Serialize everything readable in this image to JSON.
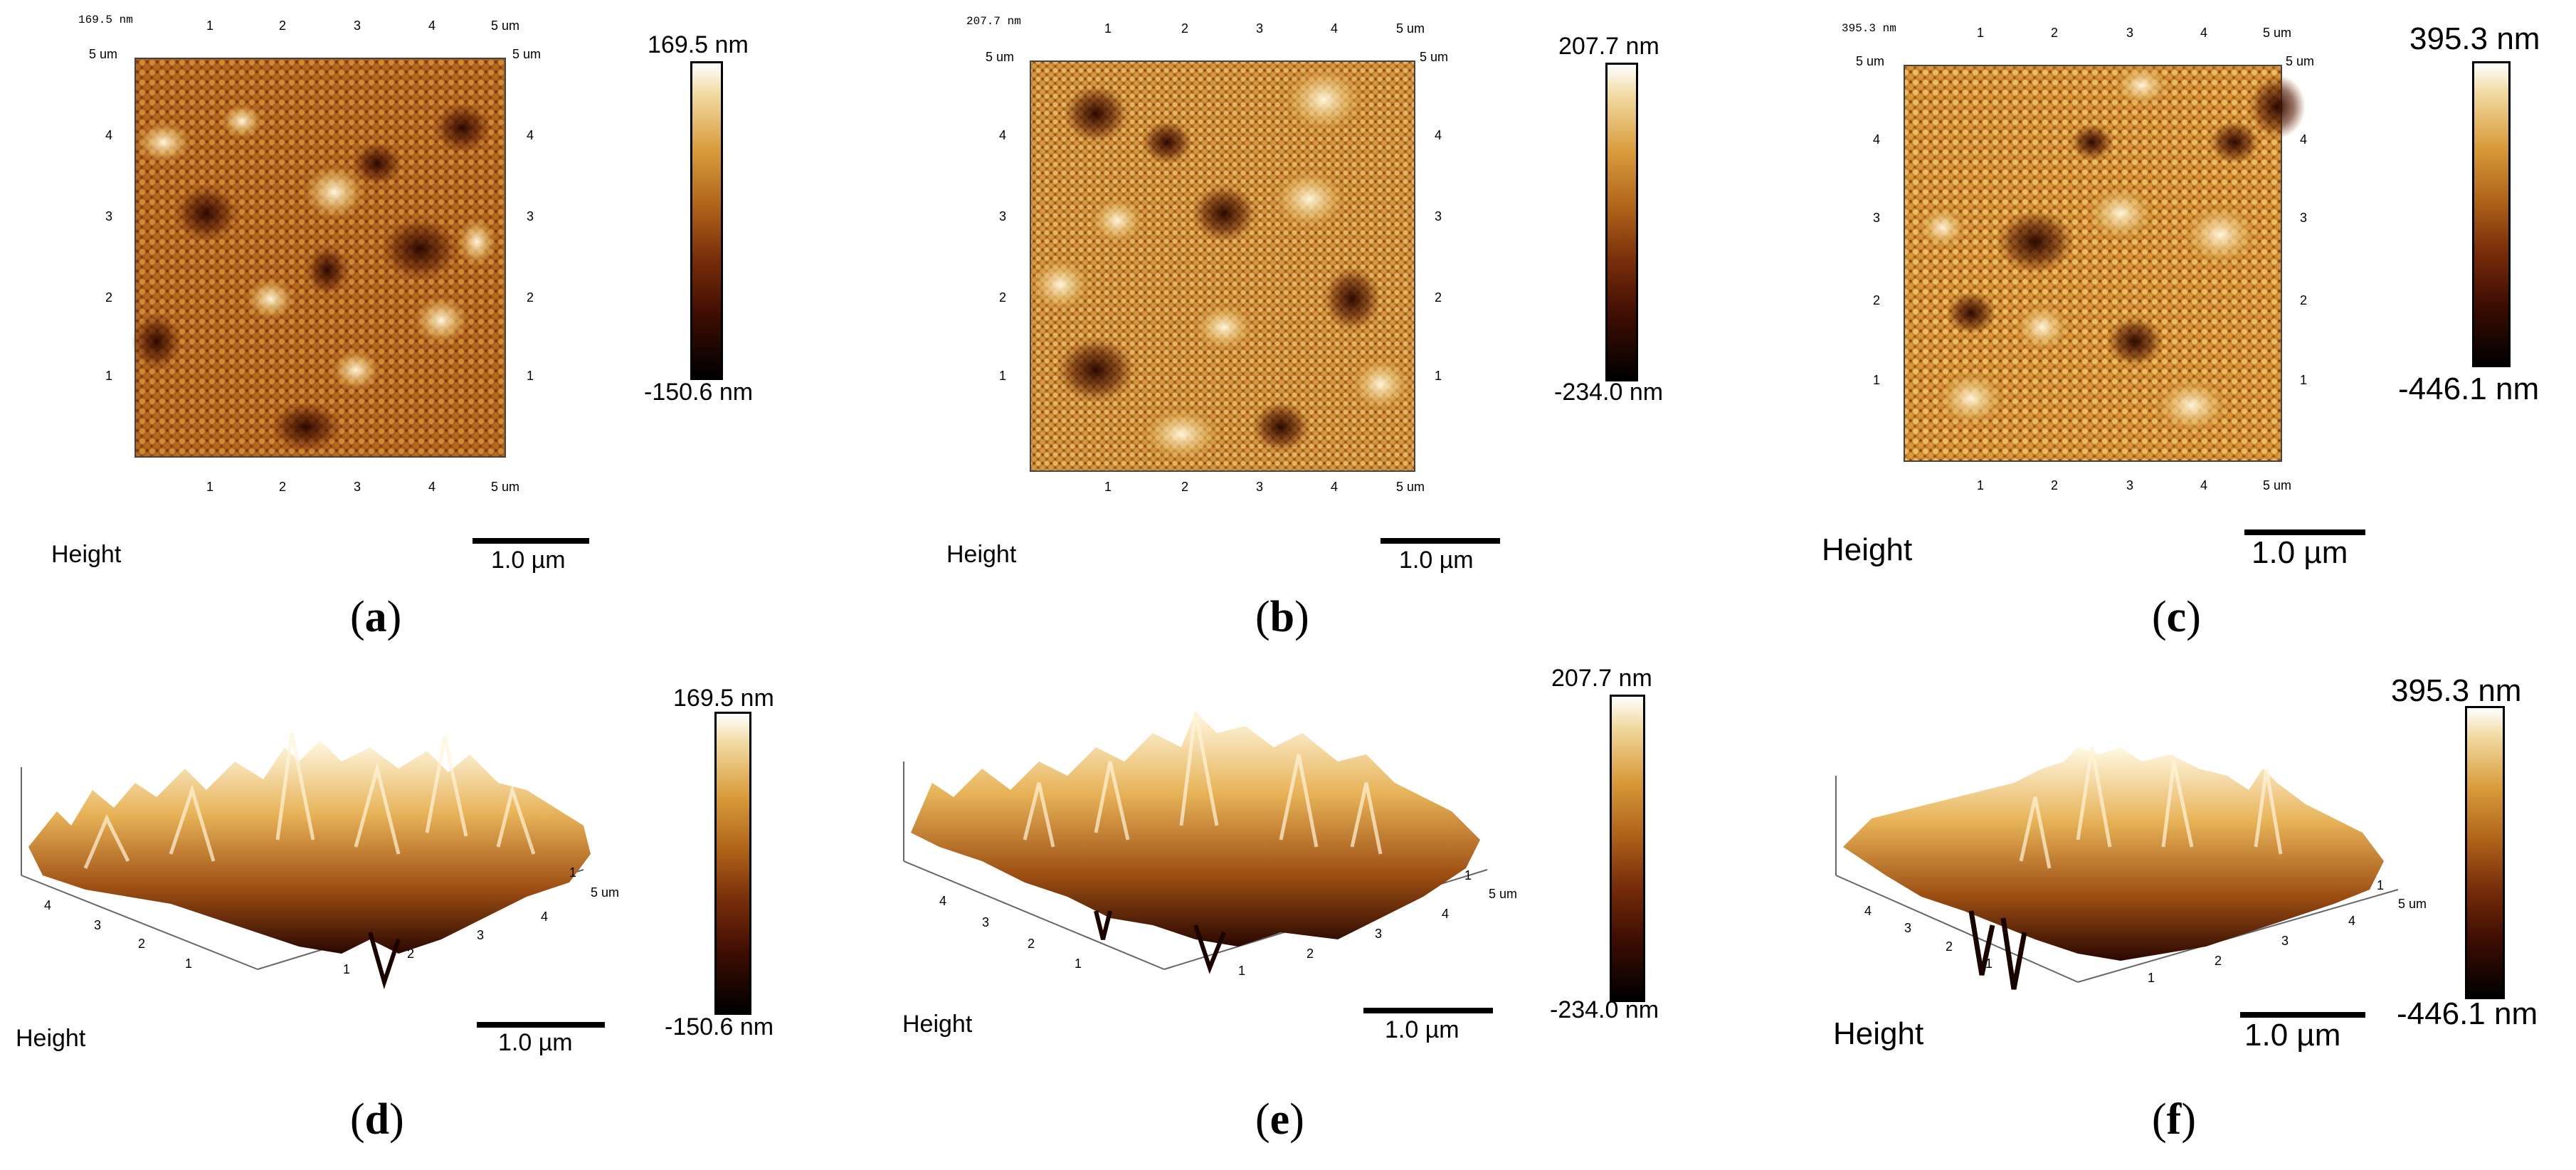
{
  "panels": [
    {
      "caption": "a",
      "view": "2d",
      "height_label": "Height",
      "scale": "1.0 µm",
      "cbar_max": "169.5 nm",
      "cbar_min": "-150.6 nm",
      "corner_tl": "169.5 nm",
      "corner_top_num": "5 um",
      "ticks": [
        "1",
        "2",
        "3",
        "4",
        "5 um"
      ],
      "yticks": [
        "1",
        "2",
        "3",
        "4"
      ],
      "axis_unit": "um"
    },
    {
      "caption": "b",
      "view": "2d",
      "height_label": "Height",
      "scale": "1.0 µm",
      "cbar_max": "207.7 nm",
      "cbar_min": "-234.0 nm",
      "corner_tl": "207.7 nm",
      "corner_top_num": "5 um",
      "ticks": [
        "1",
        "2",
        "3",
        "4",
        "5 um"
      ],
      "yticks": [
        "1",
        "2",
        "3",
        "4"
      ],
      "axis_unit": "um"
    },
    {
      "caption": "c",
      "view": "2d",
      "height_label": "Height",
      "scale": "1.0 µm",
      "cbar_max": "395.3 nm",
      "cbar_min": "-446.1 nm",
      "corner_tl": "395.3 nm",
      "corner_top_num": "5 um",
      "ticks": [
        "1",
        "2",
        "3",
        "4",
        "5 um"
      ],
      "yticks": [
        "1",
        "2",
        "3",
        "4"
      ],
      "axis_unit": "um"
    },
    {
      "caption": "d",
      "view": "3d",
      "height_label": "Height",
      "scale": "1.0 µm",
      "cbar_max": "169.5 nm",
      "cbar_min": "-150.6 nm",
      "left_ticks": [
        "4",
        "3",
        "2",
        "1"
      ],
      "right_ticks": [
        "1",
        "2",
        "3",
        "4",
        "5 um"
      ],
      "side_ticks": [
        "1"
      ]
    },
    {
      "caption": "e",
      "view": "3d",
      "height_label": "Height",
      "scale": "1.0 µm",
      "cbar_max": "207.7 nm",
      "cbar_min": "-234.0 nm",
      "left_ticks": [
        "4",
        "3",
        "2",
        "1"
      ],
      "right_ticks": [
        "1",
        "2",
        "3",
        "4",
        "5 um"
      ],
      "side_ticks": [
        "1"
      ]
    },
    {
      "caption": "f",
      "view": "3d",
      "height_label": "Height",
      "scale": "1.0 µm",
      "cbar_max": "395.3 nm",
      "cbar_min": "-446.1 nm",
      "left_ticks": [
        "4",
        "3",
        "2",
        "1"
      ],
      "right_ticks": [
        "1",
        "2",
        "3",
        "4",
        "5 um"
      ],
      "side_ticks": [
        "1"
      ]
    }
  ],
  "colors": {
    "bright": "#fbf3dd",
    "mid": "#c17a24",
    "dark": "#3a0c02",
    "background": "#ffffff"
  }
}
